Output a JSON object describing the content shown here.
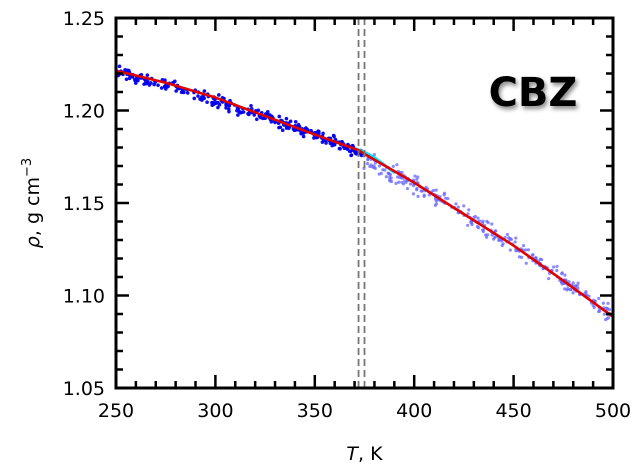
{
  "chart_data": {
    "type": "scatter",
    "annotation": "CBZ",
    "xlabel_italic": "T",
    "xlabel_rest": ", K",
    "ylabel_italic": "ρ",
    "ylabel_rest": ", g cm",
    "ylabel_exp": "−3",
    "xlim": [
      250,
      500
    ],
    "ylim": [
      1.05,
      1.25
    ],
    "x_ticks": [
      250,
      300,
      350,
      400,
      450,
      500
    ],
    "x_tick_labels": [
      "250",
      "300",
      "350",
      "400",
      "450",
      "500"
    ],
    "y_ticks": [
      1.05,
      1.1,
      1.15,
      1.2,
      1.25
    ],
    "y_tick_labels": [
      "1.05",
      "1.10",
      "1.15",
      "1.20",
      "1.25"
    ],
    "x_minor_step": 10,
    "y_minor_step": 0.01,
    "grid": false,
    "vertical_markers": [
      372,
      375
    ],
    "series": [
      {
        "role": "scatter-low",
        "color": "#0000ee",
        "x": [
          250,
          260,
          270,
          280,
          290,
          300,
          310,
          320,
          330,
          340,
          350,
          360,
          370,
          374
        ],
        "y": [
          1.2215,
          1.2185,
          1.2155,
          1.2125,
          1.2085,
          1.2055,
          1.2015,
          1.1985,
          1.1945,
          1.1905,
          1.1865,
          1.1825,
          1.1785,
          1.177
        ],
        "spread": 0.0025
      },
      {
        "role": "scatter-high",
        "color": "#6666ff",
        "x": [
          374,
          380,
          390,
          400,
          410,
          420,
          430,
          440,
          450,
          460,
          470,
          480,
          490,
          500
        ],
        "y": [
          1.1735,
          1.1705,
          1.1655,
          1.1595,
          1.1535,
          1.1475,
          1.1405,
          1.1335,
          1.1265,
          1.1195,
          1.1125,
          1.1045,
          1.0965,
          1.0885
        ],
        "spread": 0.004
      },
      {
        "role": "fit-cyan",
        "color": "#00e5ff",
        "x": [
          370,
          375,
          380,
          385,
          390
        ],
        "y": [
          1.1795,
          1.1775,
          1.1745,
          1.1705,
          1.1665
        ]
      },
      {
        "role": "fit-red",
        "color": "#e00000",
        "x": [
          250,
          275,
          300,
          325,
          350,
          372,
          375,
          400,
          425,
          450,
          475,
          500
        ],
        "y": [
          1.2215,
          1.215,
          1.207,
          1.197,
          1.187,
          1.1785,
          1.1765,
          1.161,
          1.144,
          1.127,
          1.108,
          1.0885
        ]
      }
    ]
  }
}
